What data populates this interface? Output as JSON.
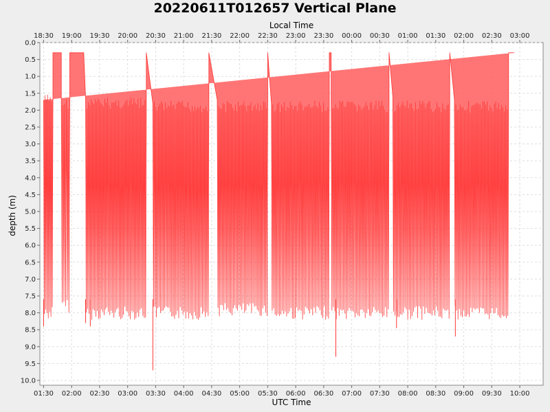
{
  "chart_data": {
    "type": "line",
    "title": "20220611T012657 Vertical Plane",
    "xlabel": "UTC Time",
    "x2label": "Local Time",
    "ylabel": "depth (m)",
    "ylim": [
      0.0,
      10.0
    ],
    "y_inverted": true,
    "y_ticks": [
      "0.0",
      "0.5",
      "1.0",
      "1.5",
      "2.0",
      "2.5",
      "3.0",
      "3.5",
      "4.0",
      "4.5",
      "5.0",
      "5.5",
      "6.0",
      "6.5",
      "7.0",
      "7.5",
      "8.0",
      "8.5",
      "9.0",
      "9.5",
      "10.0"
    ],
    "x_ticks_utc": [
      "01:30",
      "02:00",
      "02:30",
      "03:00",
      "03:30",
      "04:00",
      "04:30",
      "05:00",
      "05:30",
      "06:00",
      "06:30",
      "07:00",
      "07:30",
      "08:00",
      "08:30",
      "09:00",
      "09:30",
      "10:00"
    ],
    "x_ticks_local": [
      "18:30",
      "19:00",
      "19:30",
      "20:00",
      "20:30",
      "21:00",
      "21:30",
      "22:00",
      "22:30",
      "23:00",
      "23:30",
      "00:00",
      "00:30",
      "01:00",
      "01:30",
      "02:00",
      "02:30",
      "03:00"
    ],
    "xlim_utc": [
      "01:26",
      "10:25"
    ],
    "grid": true,
    "series": [
      {
        "color": "#ff3333",
        "fill": "#ff6666",
        "segments": [
          {
            "type": "yo",
            "t0": "01:30",
            "t1": "01:40",
            "n": 7,
            "top": 1.7,
            "bottom": 8.0
          },
          {
            "type": "surface",
            "t0": "01:40",
            "t1": "01:49",
            "depth": 0.3
          },
          {
            "type": "yo",
            "t0": "01:49",
            "t1": "01:58",
            "n": 5,
            "top": 1.8,
            "bottom": 7.8
          },
          {
            "type": "surface",
            "t0": "01:58",
            "t1": "02:13",
            "depth": 0.3
          },
          {
            "type": "yo",
            "t0": "02:15",
            "t1": "03:20",
            "n": 44,
            "top": 1.8,
            "bottom": 8.0
          },
          {
            "type": "descent",
            "t0": "03:20",
            "t1": "03:27",
            "from": 0.3,
            "to": 1.8
          },
          {
            "type": "yo",
            "t0": "03:27",
            "t1": "04:27",
            "n": 40,
            "top": 1.9,
            "bottom": 8.0
          },
          {
            "type": "descent",
            "t0": "04:27",
            "t1": "04:36",
            "from": 0.3,
            "to": 1.7
          },
          {
            "type": "yo",
            "t0": "04:36",
            "t1": "05:30",
            "n": 36,
            "top": 1.9,
            "bottom": 7.9
          },
          {
            "type": "descent",
            "t0": "05:30",
            "t1": "05:34",
            "from": 0.3,
            "to": 1.8
          },
          {
            "type": "yo",
            "t0": "05:34",
            "t1": "06:36",
            "n": 40,
            "top": 1.9,
            "bottom": 8.0
          },
          {
            "type": "surface",
            "t0": "06:36",
            "t1": "06:38",
            "depth": 0.3
          },
          {
            "type": "yo",
            "t0": "06:38",
            "t1": "07:40",
            "n": 40,
            "top": 1.9,
            "bottom": 8.0
          },
          {
            "type": "descent",
            "t0": "07:40",
            "t1": "07:44",
            "from": 0.3,
            "to": 1.6
          },
          {
            "type": "yo",
            "t0": "07:44",
            "t1": "08:45",
            "n": 40,
            "top": 1.9,
            "bottom": 8.0
          },
          {
            "type": "descent",
            "t0": "08:45",
            "t1": "08:50",
            "from": 0.3,
            "to": 1.7
          },
          {
            "type": "yo",
            "t0": "08:50",
            "t1": "09:48",
            "n": 38,
            "top": 1.9,
            "bottom": 8.0
          },
          {
            "type": "surface",
            "t0": "09:48",
            "t1": "09:54",
            "depth": 0.3
          }
        ],
        "spikes": [
          {
            "t": "01:30",
            "depth": 8.4
          },
          {
            "t": "02:15",
            "depth": 8.3
          },
          {
            "t": "02:20",
            "depth": 8.4
          },
          {
            "t": "03:27",
            "depth": 9.7
          },
          {
            "t": "06:43",
            "depth": 9.3
          },
          {
            "t": "07:48",
            "depth": 8.45
          },
          {
            "t": "08:51",
            "depth": 8.7
          }
        ]
      }
    ]
  }
}
